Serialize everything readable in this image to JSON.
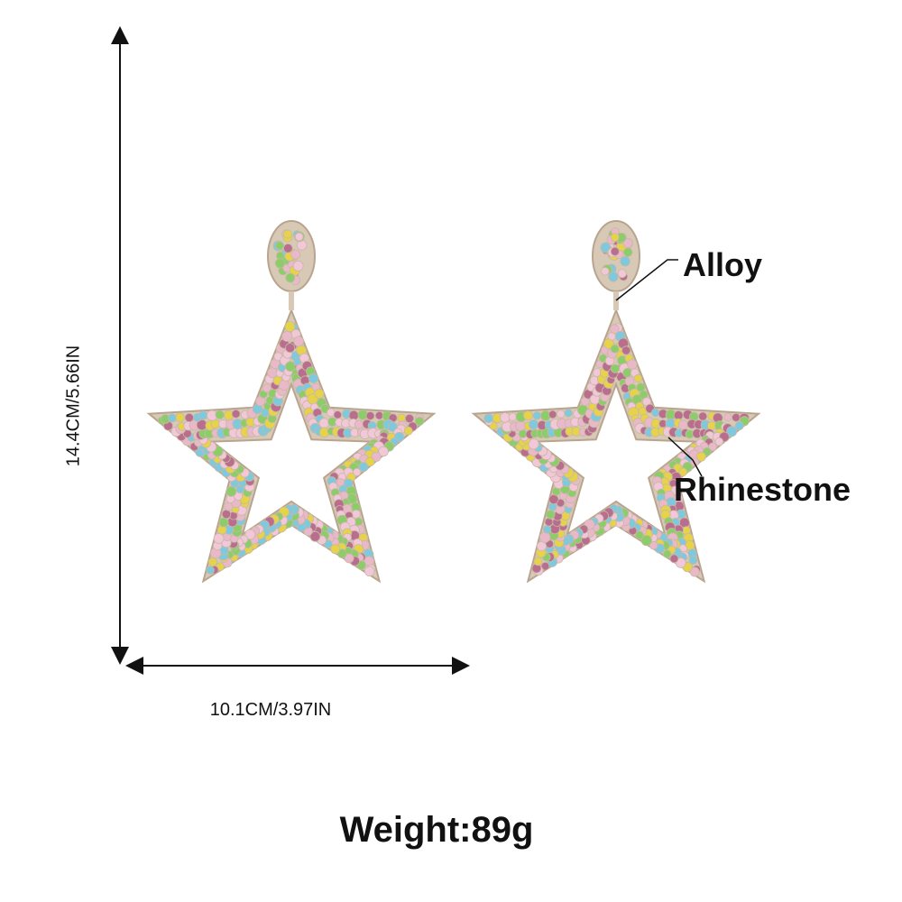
{
  "product": {
    "height_label": "14.4CM/5.66IN",
    "width_label": "10.1CM/3.97IN",
    "weight_label": "Weight:89g"
  },
  "callouts": {
    "alloy": "Alloy",
    "rhinestone": "Rhinestone"
  },
  "colors": {
    "background": "#ffffff",
    "text": "#111111",
    "metal": "#d8c9b6",
    "stones": [
      "#e9b8c9",
      "#7ec9de",
      "#e6d34a",
      "#8ccd6a",
      "#b96e8d",
      "#f2c8d8"
    ]
  },
  "icons": [
    "star-earring-image",
    "dimension-arrow-icon",
    "callout-leader-line"
  ]
}
